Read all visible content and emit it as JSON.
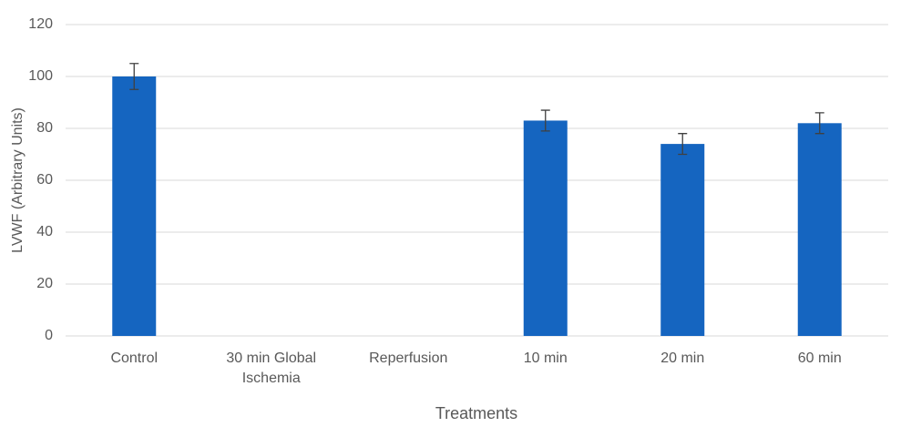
{
  "chart_data": {
    "type": "bar",
    "x_label": "Treatments",
    "y_label": "LVWF (Arbitrary Units)",
    "categories": [
      "Control",
      "30 min Global Ischemia",
      "Reperfusion",
      "10 min",
      "20 min",
      "60 min"
    ],
    "values": [
      100,
      0,
      0,
      83,
      74,
      82
    ],
    "errors": [
      5,
      null,
      null,
      4,
      4,
      4
    ],
    "color": "#1565c0",
    "ylim": [
      0,
      120
    ],
    "yticks": [
      0,
      20,
      40,
      60,
      80,
      100,
      120
    ],
    "grid": true
  }
}
